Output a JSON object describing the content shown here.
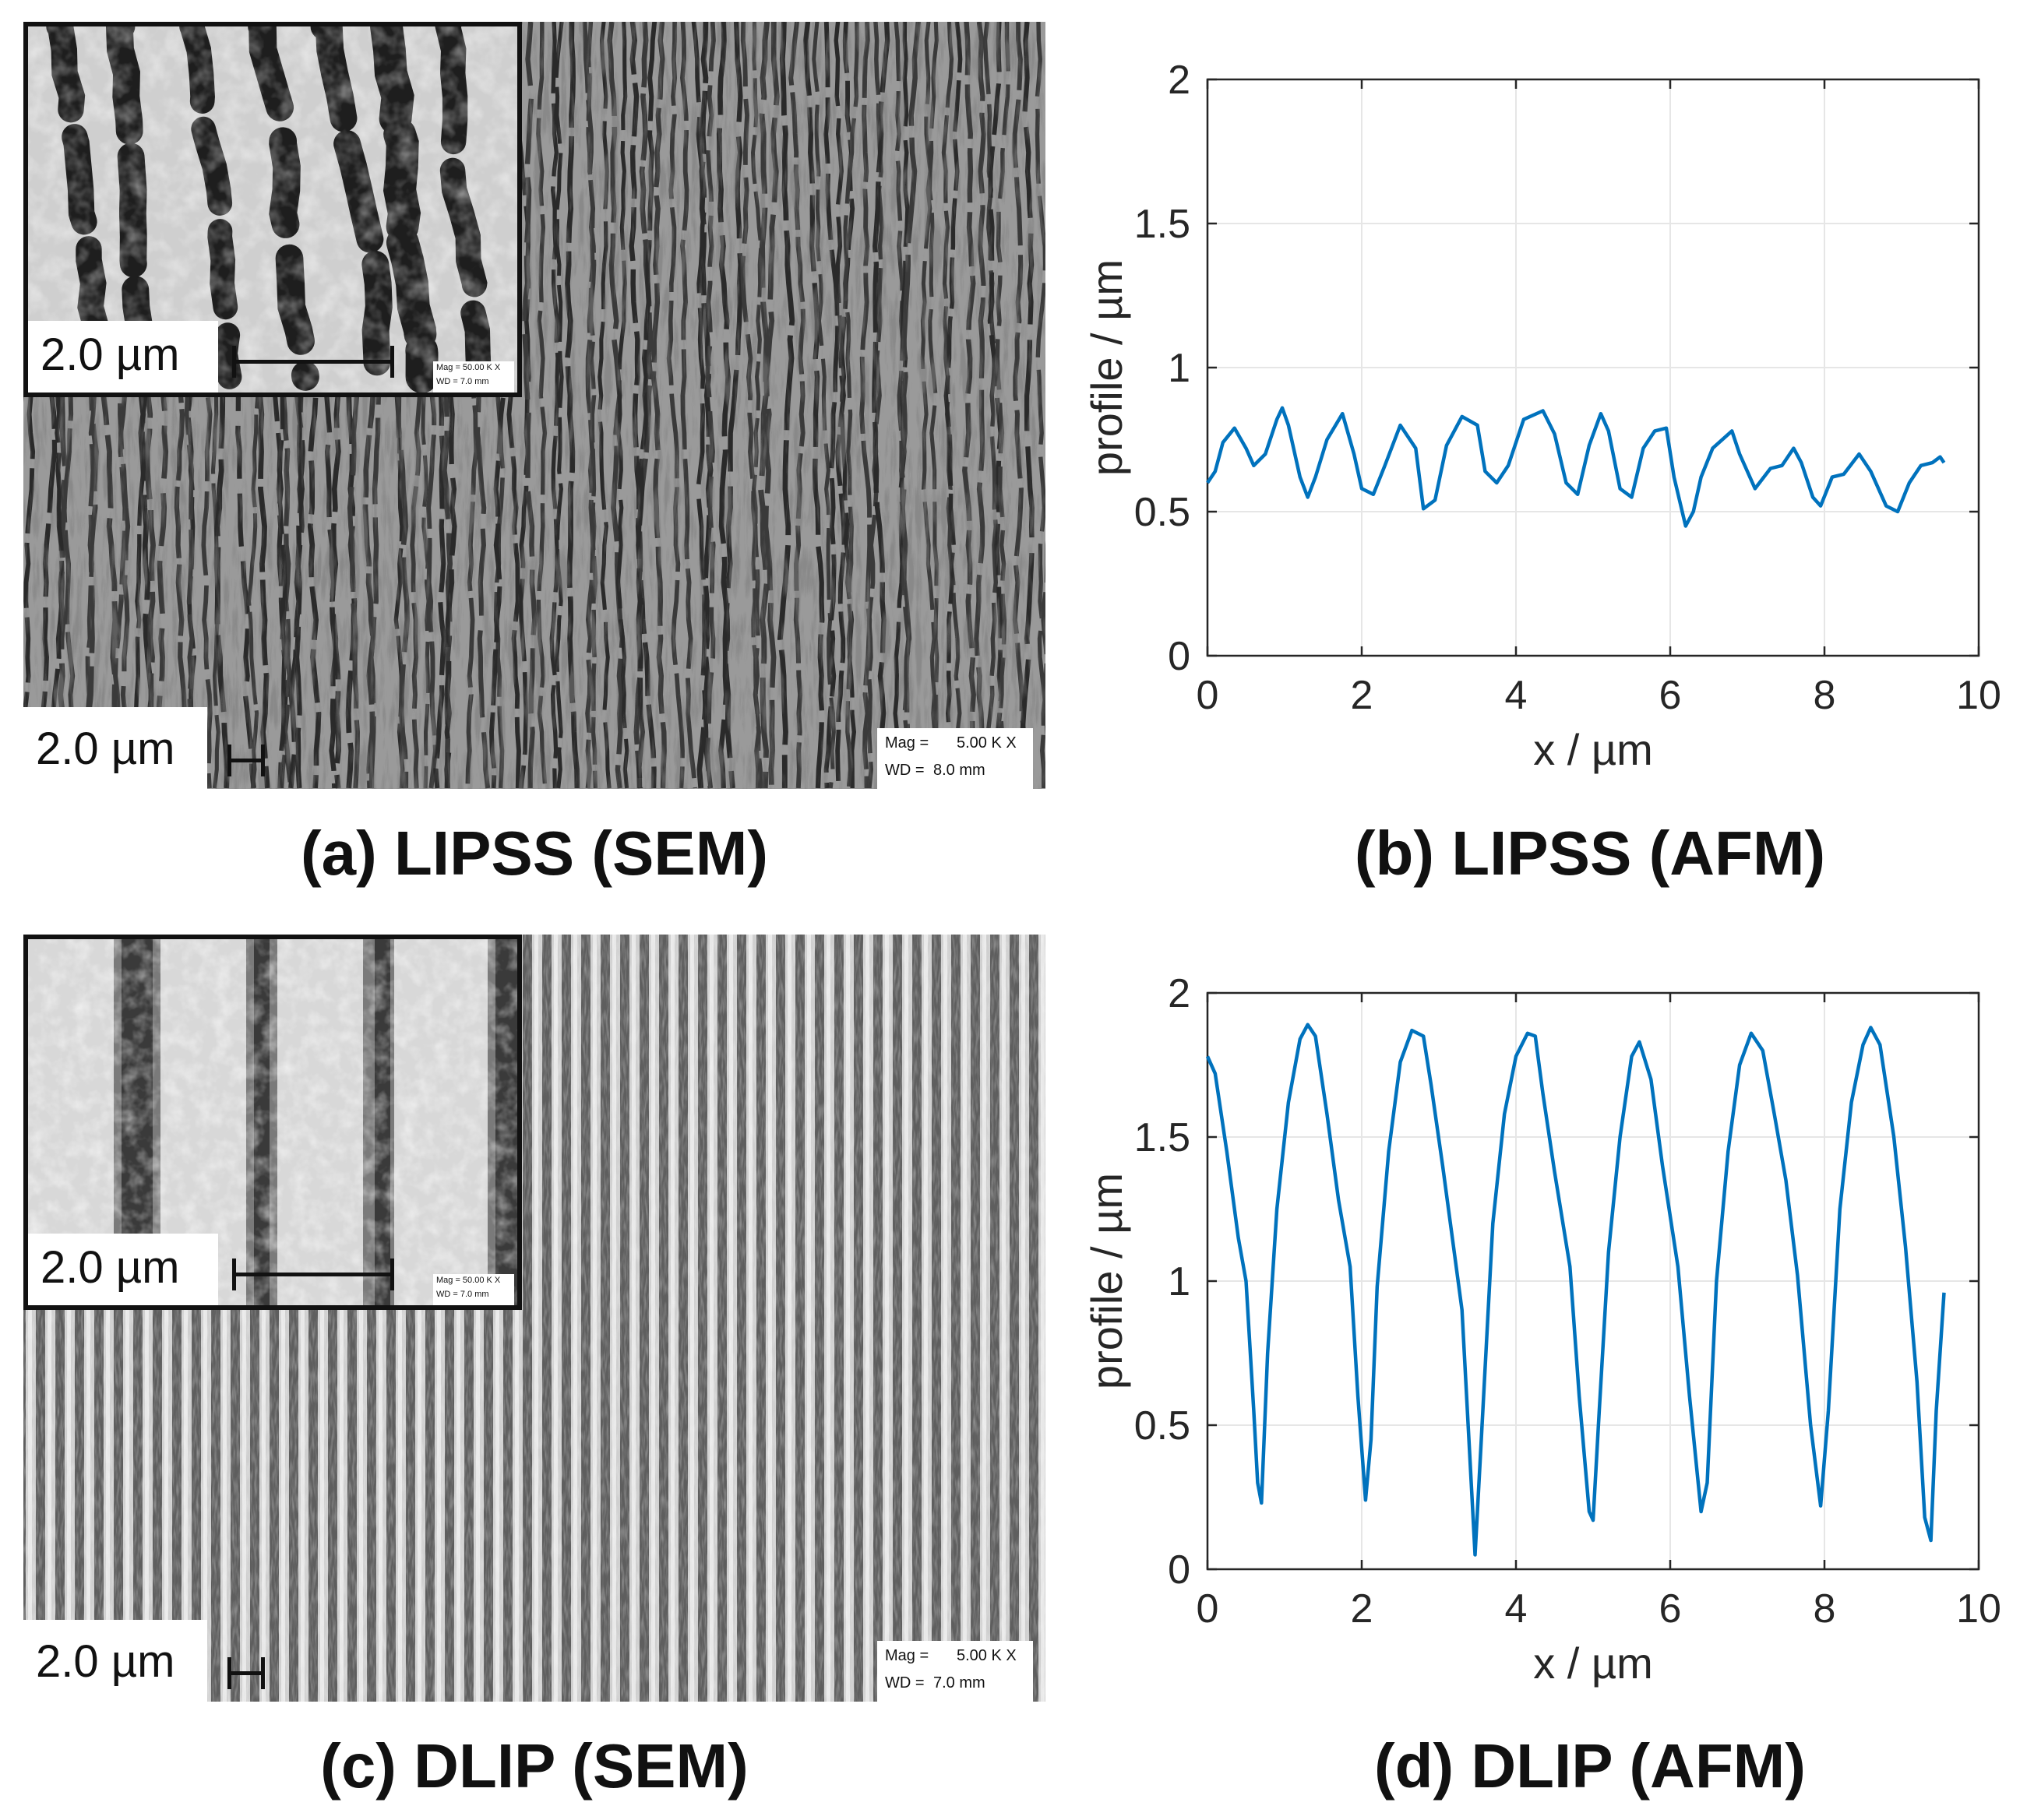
{
  "panels": {
    "a": {
      "caption": "(a) LIPSS (SEM)",
      "scale_main": "2.0 µm",
      "scale_inset": "2.0 µm",
      "meta_main": [
        "Mag =",
        "5.00 K X",
        "WD =",
        "8.0 mm"
      ],
      "meta_inset": [
        "Mag =  50.00 K X",
        "WD =  7.0 mm"
      ]
    },
    "b": {
      "caption": "(b) LIPSS (AFM)"
    },
    "c": {
      "caption": "(c) DLIP (SEM)",
      "scale_main": "2.0 µm",
      "scale_inset": "2.0 µm",
      "meta_main": [
        "Mag =",
        "5.00 K X",
        "WD =",
        "7.0 mm"
      ],
      "meta_inset": [
        "Mag =  50.00 K X",
        "WD =  7.0 mm"
      ]
    },
    "d": {
      "caption": "(d) DLIP (AFM)"
    }
  },
  "colors": {
    "line": "#0072BD",
    "grid": "#e6e6e6",
    "axis": "#262626"
  },
  "chart_data": [
    {
      "type": "line",
      "panel": "b",
      "xlabel": "x / µm",
      "ylabel": "profile / µm",
      "xlim": [
        0,
        10
      ],
      "ylim": [
        0,
        2
      ],
      "xticks": [
        "0",
        "2",
        "4",
        "6",
        "8",
        "10"
      ],
      "yticks": [
        "0",
        "0.5",
        "1",
        "1.5",
        "2"
      ],
      "grid": true,
      "x": [
        0.0,
        0.1,
        0.2,
        0.35,
        0.5,
        0.6,
        0.75,
        0.9,
        0.97,
        1.05,
        1.2,
        1.3,
        1.4,
        1.55,
        1.75,
        1.9,
        2.0,
        2.15,
        2.3,
        2.5,
        2.7,
        2.8,
        2.95,
        3.1,
        3.3,
        3.5,
        3.6,
        3.75,
        3.9,
        4.1,
        4.35,
        4.5,
        4.65,
        4.8,
        4.95,
        5.1,
        5.2,
        5.35,
        5.5,
        5.65,
        5.8,
        5.95,
        6.05,
        6.2,
        6.3,
        6.4,
        6.55,
        6.8,
        6.9,
        7.1,
        7.3,
        7.45,
        7.6,
        7.7,
        7.85,
        7.95,
        8.1,
        8.25,
        8.45,
        8.6,
        8.8,
        8.95,
        9.1,
        9.25,
        9.4,
        9.5,
        9.55
      ],
      "values": [
        0.6,
        0.64,
        0.74,
        0.79,
        0.72,
        0.66,
        0.7,
        0.82,
        0.86,
        0.8,
        0.62,
        0.55,
        0.62,
        0.75,
        0.84,
        0.7,
        0.58,
        0.56,
        0.66,
        0.8,
        0.72,
        0.51,
        0.54,
        0.73,
        0.83,
        0.8,
        0.64,
        0.6,
        0.66,
        0.82,
        0.85,
        0.77,
        0.6,
        0.56,
        0.73,
        0.84,
        0.78,
        0.58,
        0.55,
        0.72,
        0.78,
        0.79,
        0.62,
        0.45,
        0.5,
        0.62,
        0.72,
        0.78,
        0.7,
        0.58,
        0.65,
        0.66,
        0.72,
        0.67,
        0.55,
        0.52,
        0.62,
        0.63,
        0.7,
        0.64,
        0.52,
        0.5,
        0.6,
        0.66,
        0.67,
        0.69,
        0.67
      ]
    },
    {
      "type": "line",
      "panel": "d",
      "xlabel": "x / µm",
      "ylabel": "profile / µm",
      "xlim": [
        0,
        10
      ],
      "ylim": [
        0,
        2
      ],
      "xticks": [
        "0",
        "2",
        "4",
        "6",
        "8",
        "10"
      ],
      "yticks": [
        "0",
        "0.5",
        "1",
        "1.5",
        "2"
      ],
      "grid": true,
      "x": [
        0.0,
        0.1,
        0.25,
        0.4,
        0.5,
        0.6,
        0.65,
        0.7,
        0.78,
        0.9,
        1.05,
        1.2,
        1.3,
        1.4,
        1.55,
        1.7,
        1.85,
        1.95,
        2.05,
        2.12,
        2.2,
        2.35,
        2.5,
        2.65,
        2.8,
        2.9,
        3.05,
        3.2,
        3.3,
        3.4,
        3.47,
        3.55,
        3.7,
        3.85,
        4.0,
        4.15,
        4.25,
        4.35,
        4.5,
        4.7,
        4.82,
        4.95,
        5.0,
        5.08,
        5.2,
        5.35,
        5.5,
        5.6,
        5.75,
        5.9,
        6.1,
        6.25,
        6.4,
        6.48,
        6.6,
        6.75,
        6.9,
        7.05,
        7.2,
        7.35,
        7.5,
        7.65,
        7.82,
        7.95,
        8.05,
        8.2,
        8.35,
        8.5,
        8.6,
        8.72,
        8.9,
        9.05,
        9.2,
        9.3,
        9.38,
        9.45,
        9.55
      ],
      "values": [
        1.78,
        1.72,
        1.45,
        1.15,
        1.0,
        0.55,
        0.3,
        0.23,
        0.75,
        1.25,
        1.62,
        1.84,
        1.89,
        1.85,
        1.58,
        1.28,
        1.05,
        0.6,
        0.24,
        0.45,
        0.98,
        1.45,
        1.76,
        1.87,
        1.85,
        1.68,
        1.4,
        1.1,
        0.9,
        0.4,
        0.05,
        0.45,
        1.2,
        1.58,
        1.78,
        1.86,
        1.85,
        1.65,
        1.38,
        1.05,
        0.6,
        0.2,
        0.17,
        0.55,
        1.1,
        1.5,
        1.78,
        1.83,
        1.7,
        1.4,
        1.05,
        0.6,
        0.2,
        0.3,
        1.0,
        1.45,
        1.75,
        1.86,
        1.8,
        1.58,
        1.35,
        1.02,
        0.5,
        0.22,
        0.55,
        1.25,
        1.62,
        1.82,
        1.88,
        1.82,
        1.5,
        1.12,
        0.65,
        0.18,
        0.1,
        0.55,
        0.96
      ]
    }
  ]
}
